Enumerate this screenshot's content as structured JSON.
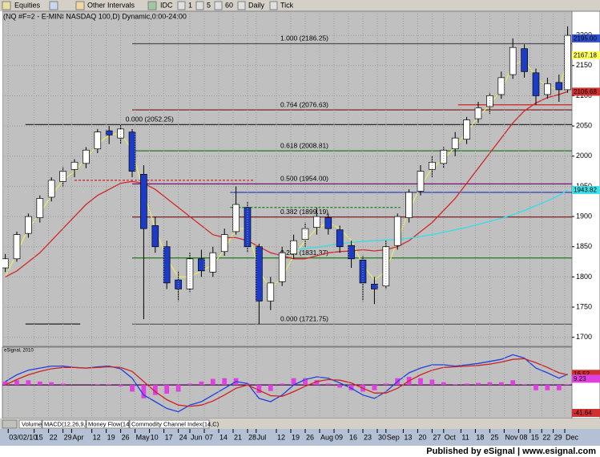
{
  "toolbar": {
    "items": [
      "Equities",
      "Other Intervals",
      "IDC",
      "1",
      "5",
      "60",
      "Daily",
      "Tick"
    ]
  },
  "title": "(NQ #F=2 - E-MINI NASDAQ 100,D) Dynamic,0:00-24:00",
  "tabs": [
    "Volume",
    "MACD(12,26,9,C)",
    "Money Flow(14)",
    "Commodity Channel Index(14,C)"
  ],
  "footer": "Published by eSignal | www.esignal.com",
  "chart_data": [
    {
      "type": "candlestick",
      "x": [
        0,
        4,
        8,
        12,
        16,
        20,
        24,
        28,
        32,
        36,
        40,
        44,
        48,
        52,
        56,
        60,
        64,
        68,
        72,
        76,
        80,
        84,
        88,
        92,
        96,
        100,
        104,
        108,
        112,
        116,
        120,
        124,
        128,
        132,
        136,
        140,
        144,
        148,
        152,
        156,
        160,
        164,
        168,
        172,
        176,
        180,
        184,
        188,
        192,
        195
      ],
      "open": [
        1815,
        1830,
        1872,
        1898,
        1932,
        1958,
        1978,
        1988,
        2012,
        2042,
        2030,
        2040,
        1970,
        1885,
        1850,
        1795,
        1780,
        1830,
        1808,
        1842,
        1875,
        1915,
        1850,
        1760,
        1792,
        1838,
        1862,
        1882,
        1898,
        1878,
        1852,
        1828,
        1788,
        1785,
        1852,
        1898,
        1942,
        1978,
        1988,
        2012,
        2028,
        2062,
        2082,
        2102,
        2135,
        2178,
        2138,
        2102,
        2122,
        2110
      ],
      "high": [
        1838,
        1875,
        1905,
        1935,
        1965,
        1982,
        1995,
        2015,
        2045,
        2050,
        2052,
        2045,
        1985,
        1900,
        1860,
        1810,
        1840,
        1845,
        1850,
        1880,
        1950,
        1925,
        1855,
        1800,
        1850,
        1870,
        1890,
        1915,
        1905,
        1885,
        1860,
        1835,
        1800,
        1860,
        1905,
        1945,
        1985,
        2000,
        2015,
        2040,
        2065,
        2090,
        2105,
        2140,
        2195,
        2185,
        2145,
        2130,
        2135,
        2215
      ],
      "low": [
        1808,
        1825,
        1865,
        1890,
        1925,
        1950,
        1965,
        1980,
        2005,
        2020,
        2020,
        1965,
        1730,
        1840,
        1780,
        1760,
        1775,
        1800,
        1800,
        1835,
        1870,
        1840,
        1722,
        1745,
        1785,
        1830,
        1850,
        1870,
        1870,
        1840,
        1815,
        1760,
        1755,
        1780,
        1845,
        1890,
        1935,
        1965,
        1980,
        2000,
        2020,
        2055,
        2070,
        2095,
        2128,
        2130,
        2085,
        2095,
        2090,
        2105
      ],
      "close": [
        1830,
        1870,
        1900,
        1930,
        1960,
        1975,
        1990,
        2010,
        2040,
        2035,
        2045,
        1975,
        1880,
        1850,
        1790,
        1780,
        1830,
        1810,
        1840,
        1870,
        1920,
        1850,
        1760,
        1790,
        1840,
        1860,
        1880,
        1900,
        1880,
        1850,
        1830,
        1790,
        1780,
        1850,
        1900,
        1940,
        1975,
        1990,
        2010,
        2030,
        2060,
        2080,
        2100,
        2130,
        2180,
        2140,
        2100,
        2120,
        2110,
        2200
      ],
      "up_color": "#ffffff",
      "down_color": "#1c3cc8",
      "series": [
        {
          "color": "#e8e870",
          "values": [
            1800,
            1840,
            1880,
            1905,
            1935,
            1960,
            1975,
            1995,
            2020,
            2035,
            2038,
            2010,
            1940,
            1880,
            1830,
            1800,
            1800,
            1810,
            1820,
            1845,
            1880,
            1880,
            1810,
            1780,
            1800,
            1835,
            1860,
            1880,
            1890,
            1880,
            1860,
            1820,
            1795,
            1810,
            1860,
            1910,
            1950,
            1980,
            1995,
            2015,
            2040,
            2065,
            2085,
            2110,
            2150,
            2160,
            2130,
            2115,
            2110,
            2160
          ]
        },
        {
          "color": "#d02828",
          "values": [
            1800,
            1810,
            1825,
            1840,
            1860,
            1880,
            1900,
            1920,
            1935,
            1945,
            1955,
            1958,
            1955,
            1945,
            1930,
            1915,
            1900,
            1885,
            1870,
            1865,
            1865,
            1860,
            1850,
            1840,
            1835,
            1830,
            1830,
            1835,
            1840,
            1842,
            1843,
            1845,
            1843,
            1845,
            1850,
            1860,
            1875,
            1890,
            1910,
            1930,
            1955,
            1980,
            2005,
            2030,
            2055,
            2075,
            2088,
            2097,
            2102,
            2107
          ]
        },
        {
          "color": "#30e0e8",
          "values": [
            null,
            null,
            null,
            null,
            null,
            null,
            null,
            null,
            null,
            null,
            null,
            null,
            null,
            null,
            null,
            null,
            null,
            null,
            null,
            null,
            null,
            null,
            null,
            null,
            null,
            1845,
            1847,
            1849,
            1852,
            1855,
            1857,
            1859,
            1860,
            1861,
            1862,
            1864,
            1867,
            1870,
            1874,
            1878,
            1882,
            1887,
            1892,
            1897,
            1903,
            1910,
            1918,
            1926,
            1935,
            1944
          ]
        }
      ],
      "levels": [
        {
          "label": "1.000 (2186.25)",
          "value": 2186.25,
          "from": 44,
          "color": "#505050"
        },
        {
          "label": "0.764 (2076.63)",
          "value": 2076.63,
          "from": 44,
          "color": "#7a1010"
        },
        {
          "label": "0.618 (2008.81)",
          "value": 2008.81,
          "from": 44,
          "color": "#1e7a1e"
        },
        {
          "label": "0.500 (1954.00)",
          "value": 1954,
          "from": 44,
          "color": "#7a107a"
        },
        {
          "label": "0.382 (1899.19)",
          "value": 1899.19,
          "from": 44,
          "color": "#7a1010"
        },
        {
          "label": "0.236 (1831.37)",
          "value": 1831.37,
          "from": 44,
          "color": "#1e7a1e"
        },
        {
          "label": "0.000 (1721.75)",
          "value": 1721.75,
          "from": 44,
          "color": "#505050"
        },
        {
          "label": "0.000 (2052.25)",
          "value": 2052.25,
          "from": 7,
          "color": "#303030"
        },
        {
          "value": 1940,
          "from": 78,
          "color": "#2030c0"
        },
        {
          "value": 1960,
          "from": 24,
          "to": 86,
          "color": "#d02020",
          "dashed": true
        },
        {
          "value": 1915,
          "from": 78,
          "to": 137,
          "color": "#1e7a1e",
          "dashed": true
        },
        {
          "value": 2085,
          "from": 157,
          "color": "#d02020"
        },
        {
          "value": 1722,
          "from": 7,
          "to": 26,
          "color": "#202020"
        }
      ],
      "price_markers": [
        {
          "value": 2195,
          "label": "2195.00",
          "color": "#3050d0"
        },
        {
          "value": 2167.18,
          "label": "2167.18",
          "color": "#ffff60"
        },
        {
          "value": 2106.68,
          "label": "2106.68",
          "color": "#d03030"
        },
        {
          "value": 1943.82,
          "label": "1943.82",
          "color": "#40e0e8"
        }
      ],
      "xlim": [
        -1,
        196.5
      ],
      "xticks": [
        {
          "value": 1,
          "label": "03/02/10"
        },
        {
          "value": 10,
          "label": "15"
        },
        {
          "value": 15,
          "label": "22"
        },
        {
          "value": 20,
          "label": "29"
        },
        {
          "value": 23,
          "label": "Apr"
        },
        {
          "value": 30,
          "label": "12"
        },
        {
          "value": 35,
          "label": "19"
        },
        {
          "value": 40,
          "label": "26"
        },
        {
          "value": 45,
          "label": "May"
        },
        {
          "value": 50,
          "label": "10"
        },
        {
          "value": 55,
          "label": "17"
        },
        {
          "value": 60,
          "label": "24"
        },
        {
          "value": 64,
          "label": "Jun"
        },
        {
          "value": 69,
          "label": "07"
        },
        {
          "value": 74,
          "label": "14"
        },
        {
          "value": 79,
          "label": "21"
        },
        {
          "value": 84,
          "label": "28"
        },
        {
          "value": 87,
          "label": "Jul"
        },
        {
          "value": 94,
          "label": "12"
        },
        {
          "value": 99,
          "label": "19"
        },
        {
          "value": 104,
          "label": "26"
        },
        {
          "value": 109,
          "label": "Aug"
        },
        {
          "value": 114,
          "label": "09"
        },
        {
          "value": 119,
          "label": "16"
        },
        {
          "value": 124,
          "label": "23"
        },
        {
          "value": 129,
          "label": "30"
        },
        {
          "value": 132,
          "label": "Sep"
        },
        {
          "value": 138,
          "label": "13"
        },
        {
          "value": 143,
          "label": "20"
        },
        {
          "value": 148,
          "label": "27"
        },
        {
          "value": 152,
          "label": "Oct"
        },
        {
          "value": 158,
          "label": "11"
        },
        {
          "value": 163,
          "label": "18"
        },
        {
          "value": 168,
          "label": "25"
        },
        {
          "value": 173,
          "label": "Nov"
        },
        {
          "value": 178,
          "label": "08"
        },
        {
          "value": 182,
          "label": "15"
        },
        {
          "value": 186,
          "label": "22"
        },
        {
          "value": 190,
          "label": "29"
        },
        {
          "value": 194,
          "label": "Dec"
        }
      ],
      "ylim": [
        1685,
        2240
      ],
      "yticks": [
        1700,
        1750,
        1800,
        1850,
        1900,
        1950,
        2000,
        2050,
        2100,
        2150,
        2200
      ],
      "grid": true
    },
    {
      "type": "macd",
      "title": "eSignal, 2010",
      "x": [
        0,
        4,
        8,
        12,
        16,
        20,
        24,
        28,
        32,
        36,
        40,
        44,
        48,
        52,
        56,
        60,
        64,
        68,
        72,
        76,
        80,
        84,
        88,
        92,
        96,
        100,
        104,
        108,
        112,
        116,
        120,
        124,
        128,
        132,
        136,
        140,
        144,
        148,
        152,
        156,
        160,
        164,
        168,
        172,
        176,
        180,
        184,
        188,
        192,
        195
      ],
      "series": [
        {
          "color": "#2040e0",
          "values": [
            5,
            15,
            22,
            25,
            28,
            28,
            26,
            25,
            27,
            28,
            24,
            10,
            -15,
            -25,
            -35,
            -40,
            -30,
            -25,
            -15,
            -5,
            5,
            2,
            -20,
            -25,
            -15,
            0,
            8,
            12,
            10,
            3,
            -5,
            -15,
            -20,
            -10,
            5,
            18,
            25,
            30,
            30,
            28,
            30,
            32,
            35,
            38,
            45,
            40,
            25,
            18,
            10,
            16
          ]
        },
        {
          "color": "#d02020",
          "values": [
            0,
            8,
            15,
            20,
            24,
            26,
            26,
            25,
            26,
            27,
            26,
            20,
            5,
            -10,
            -22,
            -30,
            -32,
            -30,
            -24,
            -15,
            -5,
            0,
            -8,
            -16,
            -17,
            -10,
            -2,
            5,
            8,
            7,
            3,
            -5,
            -12,
            -12,
            -5,
            6,
            15,
            22,
            26,
            27,
            28,
            29,
            31,
            34,
            38,
            39,
            33,
            26,
            18,
            15
          ]
        }
      ],
      "histogram": {
        "color": "#e040e0",
        "values": [
          5,
          7,
          7,
          5,
          4,
          2,
          0,
          0,
          1,
          1,
          -2,
          -10,
          -20,
          -15,
          -13,
          -10,
          2,
          5,
          9,
          10,
          10,
          2,
          -12,
          -9,
          2,
          10,
          10,
          7,
          2,
          -4,
          -8,
          -10,
          -8,
          2,
          10,
          12,
          10,
          8,
          4,
          1,
          2,
          3,
          4,
          4,
          7,
          1,
          -8,
          -8,
          -8,
          1
        ]
      },
      "markers": [
        {
          "value": 16.52,
          "label": "16.52",
          "color": "#d03030"
        },
        {
          "value": 9.23,
          "label": "9.23",
          "color": "#e040e0"
        },
        {
          "value": -41.64,
          "label": "-41.64",
          "color": "#d03030"
        }
      ],
      "xlim": [
        -1,
        196.5
      ],
      "ylim": [
        -50,
        55
      ]
    }
  ]
}
